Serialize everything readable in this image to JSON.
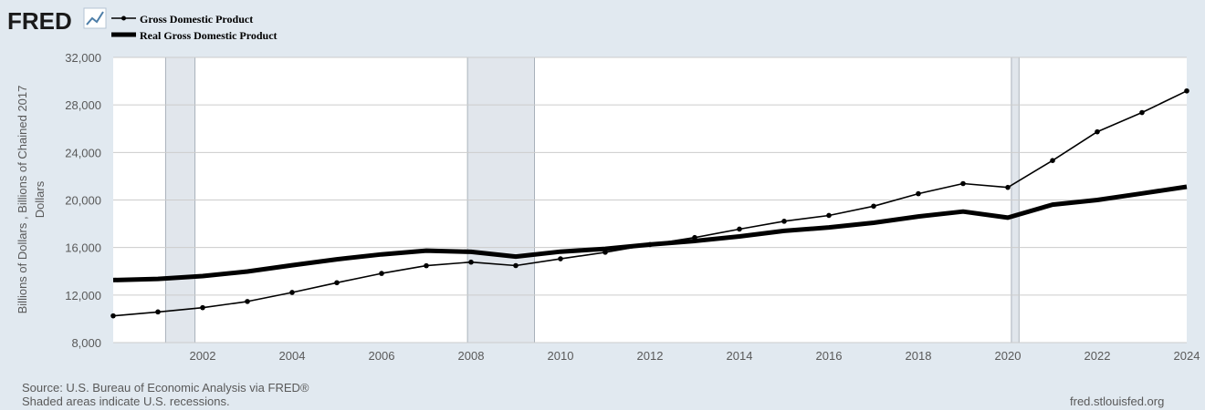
{
  "header": {
    "logo_text": "FRED",
    "logo_icon": "trend-line-icon"
  },
  "footer": {
    "source": "Source: U.S. Bureau of Economic Analysis via FRED®",
    "recession_note": "Shaded areas indicate U.S. recessions.",
    "site": "fred.stlouisfed.org"
  },
  "chart_data": {
    "type": "line",
    "title": "",
    "xlabel": "",
    "ylabel": "Billions of Dollars , Billions of Chained 2017 Dollars",
    "ylabel_lines": [
      "Billions of Dollars , Billions of Chained 2017",
      "Dollars"
    ],
    "xlim": [
      2000,
      2024
    ],
    "ylim": [
      8000,
      32000
    ],
    "x_ticks": [
      2002,
      2004,
      2006,
      2008,
      2010,
      2012,
      2014,
      2016,
      2018,
      2020,
      2022,
      2024
    ],
    "y_ticks": [
      8000,
      12000,
      16000,
      20000,
      24000,
      28000,
      32000
    ],
    "y_tick_labels": [
      "8,000",
      "12,000",
      "16,000",
      "20,000",
      "24,000",
      "28,000",
      "32,000"
    ],
    "grid": true,
    "legend_position": "top-left",
    "recessions": [
      [
        2001.17,
        2001.83
      ],
      [
        2007.92,
        2009.42
      ],
      [
        2020.08,
        2020.25
      ]
    ],
    "x": [
      2000,
      2001,
      2002,
      2003,
      2004,
      2005,
      2006,
      2007,
      2008,
      2009,
      2010,
      2011,
      2012,
      2013,
      2014,
      2015,
      2016,
      2017,
      2018,
      2019,
      2020,
      2021,
      2022,
      2023,
      2024
    ],
    "series": [
      {
        "name": "Gross Domestic Product",
        "style": "thin-with-markers",
        "color": "#000000",
        "values": [
          10250,
          10580,
          10940,
          11460,
          12220,
          13040,
          13820,
          14470,
          14770,
          14480,
          15050,
          15600,
          16250,
          16840,
          17550,
          18210,
          18700,
          19480,
          20530,
          21380,
          21060,
          23320,
          25740,
          27360,
          29180
        ]
      },
      {
        "name": "Real Gross Domestic Product",
        "style": "thick",
        "color": "#000000",
        "values": [
          13260,
          13360,
          13600,
          13980,
          14510,
          15010,
          15420,
          15740,
          15640,
          15240,
          15650,
          15890,
          16250,
          16550,
          16930,
          17400,
          17690,
          18080,
          18610,
          19030,
          18510,
          19610,
          20000,
          20550,
          21110
        ]
      }
    ]
  }
}
